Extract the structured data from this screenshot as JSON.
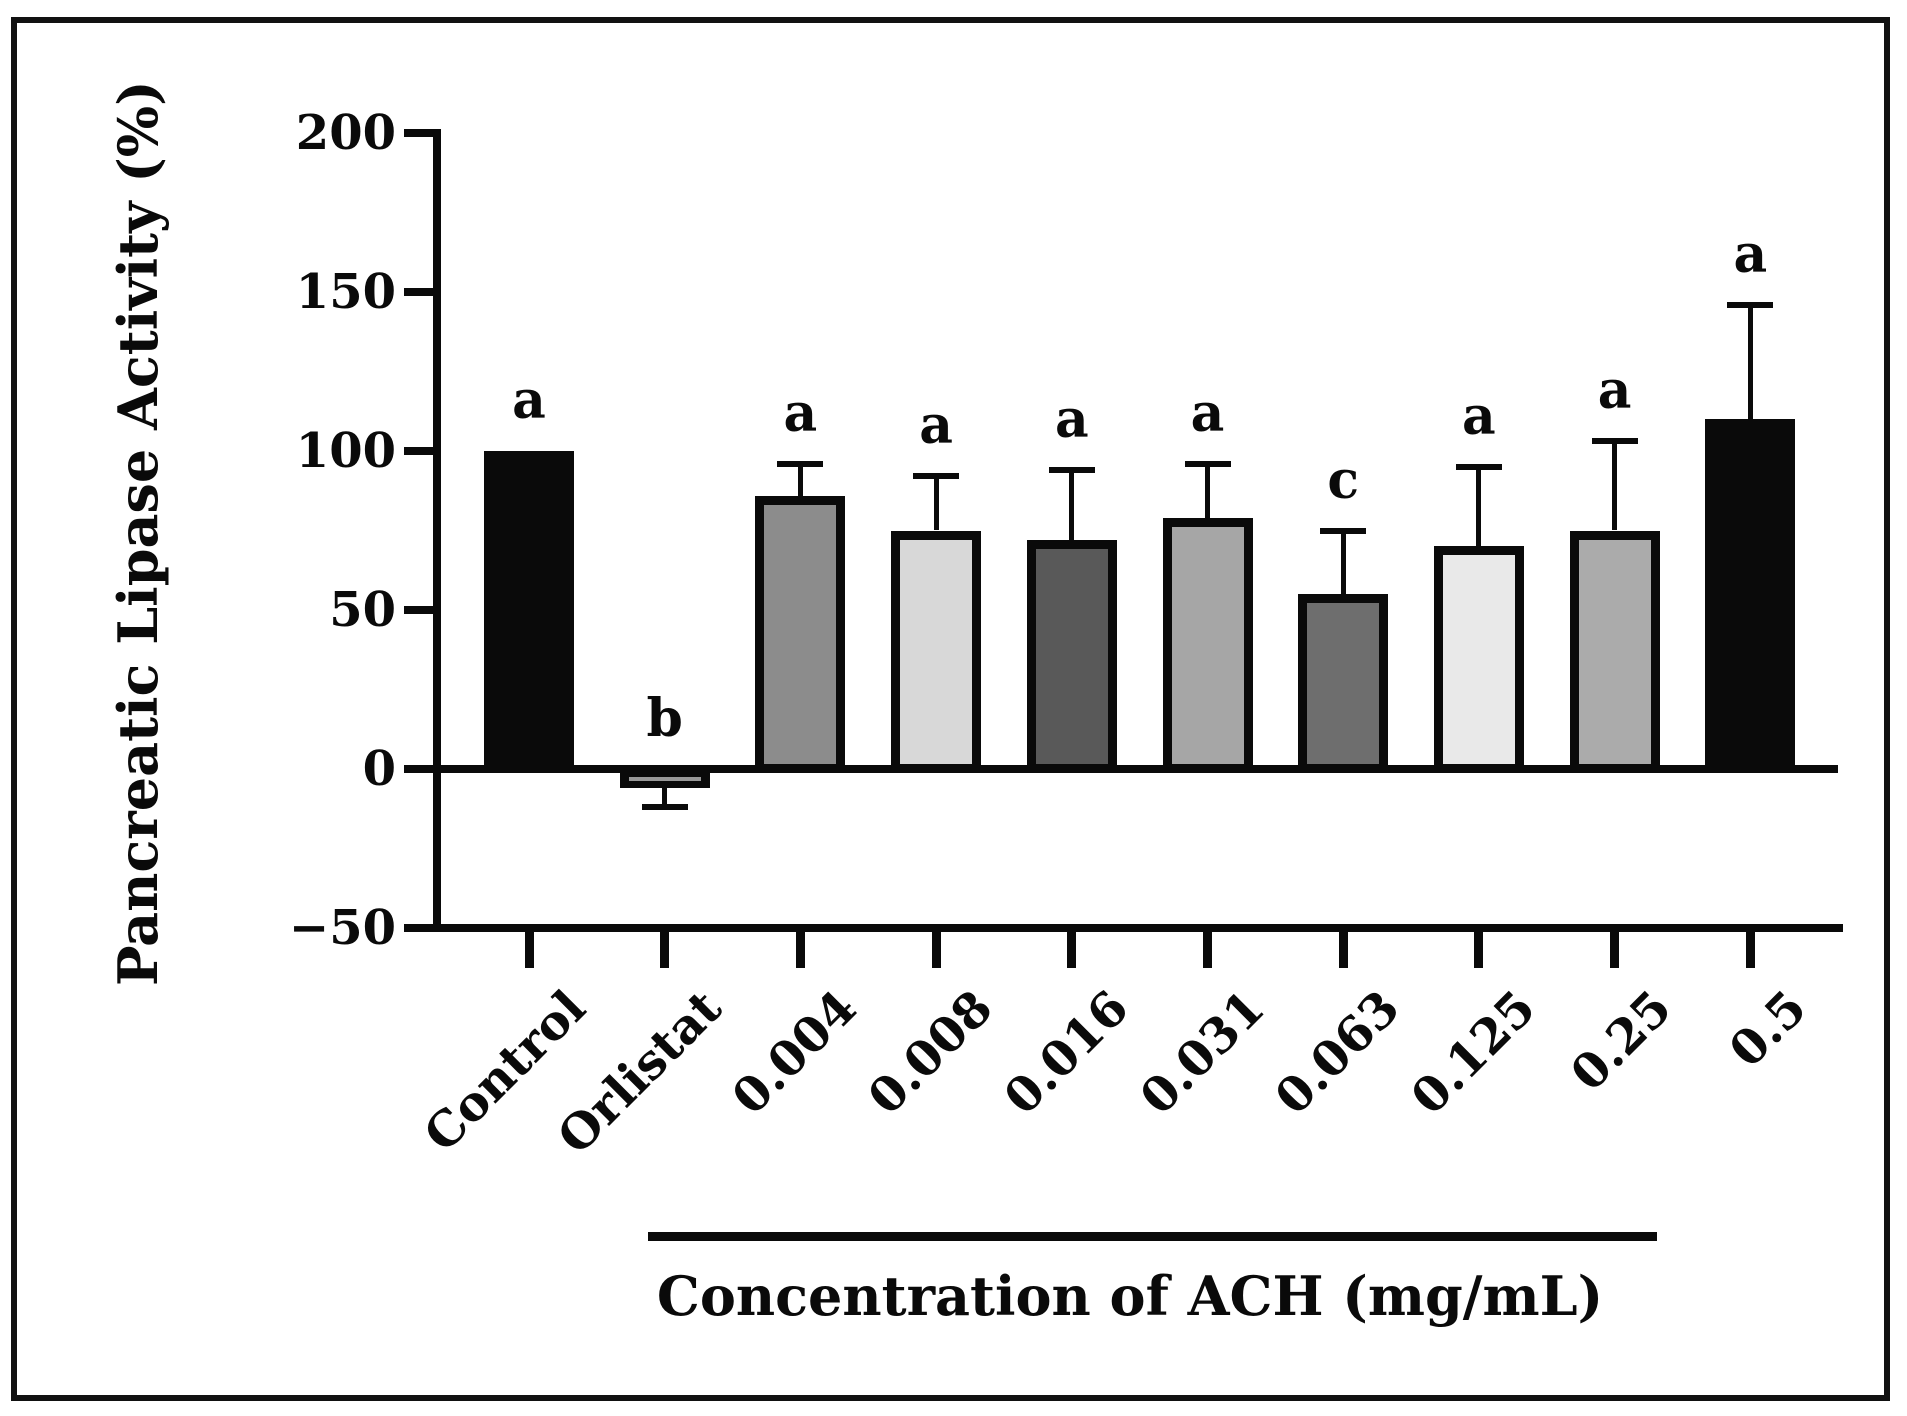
{
  "figure": {
    "ylabel": "Pancreatic Lipase Activity (%)",
    "group_axis_label": "Concentration of ACH (mg/mL)"
  },
  "chart_data": {
    "type": "bar",
    "title": "",
    "ylabel": "Pancreatic Lipase Activity (%)",
    "xlabel": "Concentration of ACH (mg/mL)",
    "categories": [
      "Control",
      "Orlistat",
      "0.004",
      "0.008",
      "0.016",
      "0.031",
      "0.063",
      "0.125",
      "0.25",
      "0.5"
    ],
    "values": [
      100,
      -6,
      86,
      75,
      72,
      79,
      55,
      70,
      75,
      110
    ],
    "errors_upper": [
      0,
      6,
      10,
      17,
      22,
      17,
      20,
      25,
      28,
      36
    ],
    "error_direction": [
      "none",
      "down",
      "up",
      "up",
      "up",
      "up",
      "up",
      "up",
      "up",
      "up"
    ],
    "sig_letters": [
      "a",
      "b",
      "a",
      "a",
      "a",
      "a",
      "c",
      "a",
      "a",
      "a"
    ],
    "bar_colors": [
      "#0a0a0a",
      "#0a0a0a",
      "#8c8c8c",
      "#d8d8d8",
      "#595959",
      "#a6a6a6",
      "#6e6e6e",
      "#e9e9e9",
      "#ababab",
      "#0a0a0a"
    ],
    "bar_outline_color": "#0a0a0a",
    "axis_color": "#0a0a0a",
    "ylim": [
      -50,
      200
    ],
    "yticks": [
      200,
      150,
      100,
      50,
      0,
      -50
    ],
    "ytick_labels": [
      "200",
      "150",
      "100",
      "50",
      "0",
      "−50"
    ],
    "grid": "off",
    "legend": "none",
    "group_span_categories": [
      "0.004",
      "0.5"
    ],
    "group_bracket": true
  }
}
